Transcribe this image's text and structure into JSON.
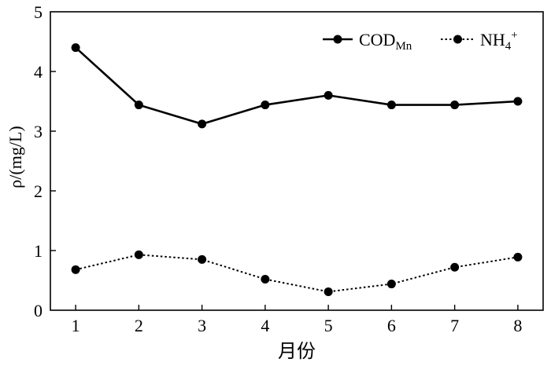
{
  "chart_data": {
    "type": "line",
    "xlabel": "月份",
    "ylabel": "ρ/(mg/L)",
    "x": [
      1,
      2,
      3,
      4,
      5,
      6,
      7,
      8
    ],
    "xlim": [
      0.6,
      8.4
    ],
    "ylim": [
      0,
      5
    ],
    "yticks": [
      0,
      1,
      2,
      3,
      4,
      5
    ],
    "grid": false,
    "legend_position": "top-right",
    "series": [
      {
        "name": "COD",
        "name_sub": "Mn",
        "name_sup": "",
        "line_style": "solid",
        "values": [
          4.4,
          3.44,
          3.12,
          3.44,
          3.6,
          3.44,
          3.44,
          3.5
        ]
      },
      {
        "name": "NH",
        "name_sub": "4",
        "name_sup": "+",
        "line_style": "dotted",
        "values": [
          0.68,
          0.93,
          0.85,
          0.52,
          0.31,
          0.44,
          0.72,
          0.89
        ]
      }
    ]
  }
}
